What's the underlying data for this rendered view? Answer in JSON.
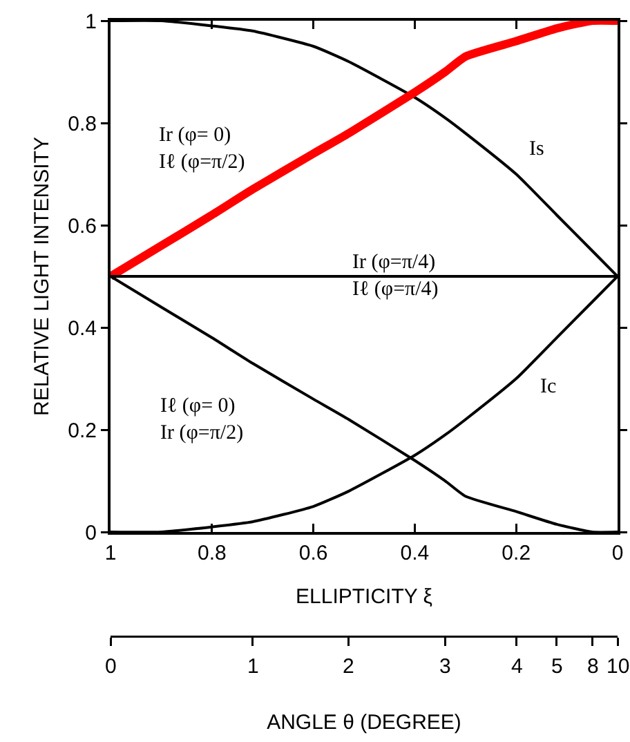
{
  "chart_data": {
    "type": "line",
    "xlabel": "ELLIPTICITY ξ",
    "ylabel": "RELATIVE LIGHT INTENSITY",
    "x2label": "ANGLE θ (DEGREE)",
    "x": [
      1,
      0.9,
      0.8,
      0.72,
      0.6,
      0.53,
      0.4,
      0.34,
      0.3,
      0.2,
      0.12,
      0.05,
      0
    ],
    "series": [
      {
        "name": "Is",
        "color": "#000000",
        "values": [
          1,
          1,
          0.99,
          0.98,
          0.95,
          0.92,
          0.85,
          0.81,
          0.78,
          0.7,
          0.62,
          0.55,
          0.5
        ]
      },
      {
        "name": "Ir (φ= 0)\nIℓ (φ=π/2)",
        "color": "#ff0000",
        "values": [
          0.5,
          0.56,
          0.62,
          0.67,
          0.74,
          0.78,
          0.86,
          0.9,
          0.93,
          0.96,
          0.985,
          1,
          1
        ]
      },
      {
        "name": "Ir (φ=π/4)\nIℓ (φ=π/4)",
        "color": "#000000",
        "values": [
          0.5,
          0.5,
          0.5,
          0.5,
          0.5,
          0.5,
          0.5,
          0.5,
          0.5,
          0.5,
          0.5,
          0.5,
          0.5
        ]
      },
      {
        "name": "Iℓ (φ= 0)\nIr (φ=π/2)",
        "color": "#000000",
        "values": [
          0.5,
          0.44,
          0.38,
          0.33,
          0.26,
          0.22,
          0.14,
          0.1,
          0.07,
          0.04,
          0.015,
          0,
          0
        ]
      },
      {
        "name": "Ic",
        "color": "#000000",
        "values": [
          0,
          0,
          0.01,
          0.02,
          0.05,
          0.08,
          0.15,
          0.19,
          0.22,
          0.3,
          0.38,
          0.45,
          0.5
        ]
      }
    ],
    "xlim": [
      1,
      0
    ],
    "xticks": [
      1,
      0.8,
      0.6,
      0.4,
      0.2,
      0
    ],
    "ylim": [
      0,
      1
    ],
    "yticks": [
      0,
      0.2,
      0.4,
      0.6,
      0.8,
      1
    ],
    "annotations": [
      {
        "text": "0",
        "x": 1
      },
      {
        "text": "1",
        "x": 0.72
      },
      {
        "text": "2",
        "x": 0.53
      },
      {
        "text": "3",
        "x": 0.34
      },
      {
        "text": "4",
        "x": 0.2
      },
      {
        "text": "5",
        "x": 0.12
      },
      {
        "text": "8",
        "x": 0.05
      },
      {
        "text": "10",
        "x": 0
      }
    ],
    "grid": false,
    "legend": false,
    "marker": "none",
    "line_style": "solid"
  }
}
